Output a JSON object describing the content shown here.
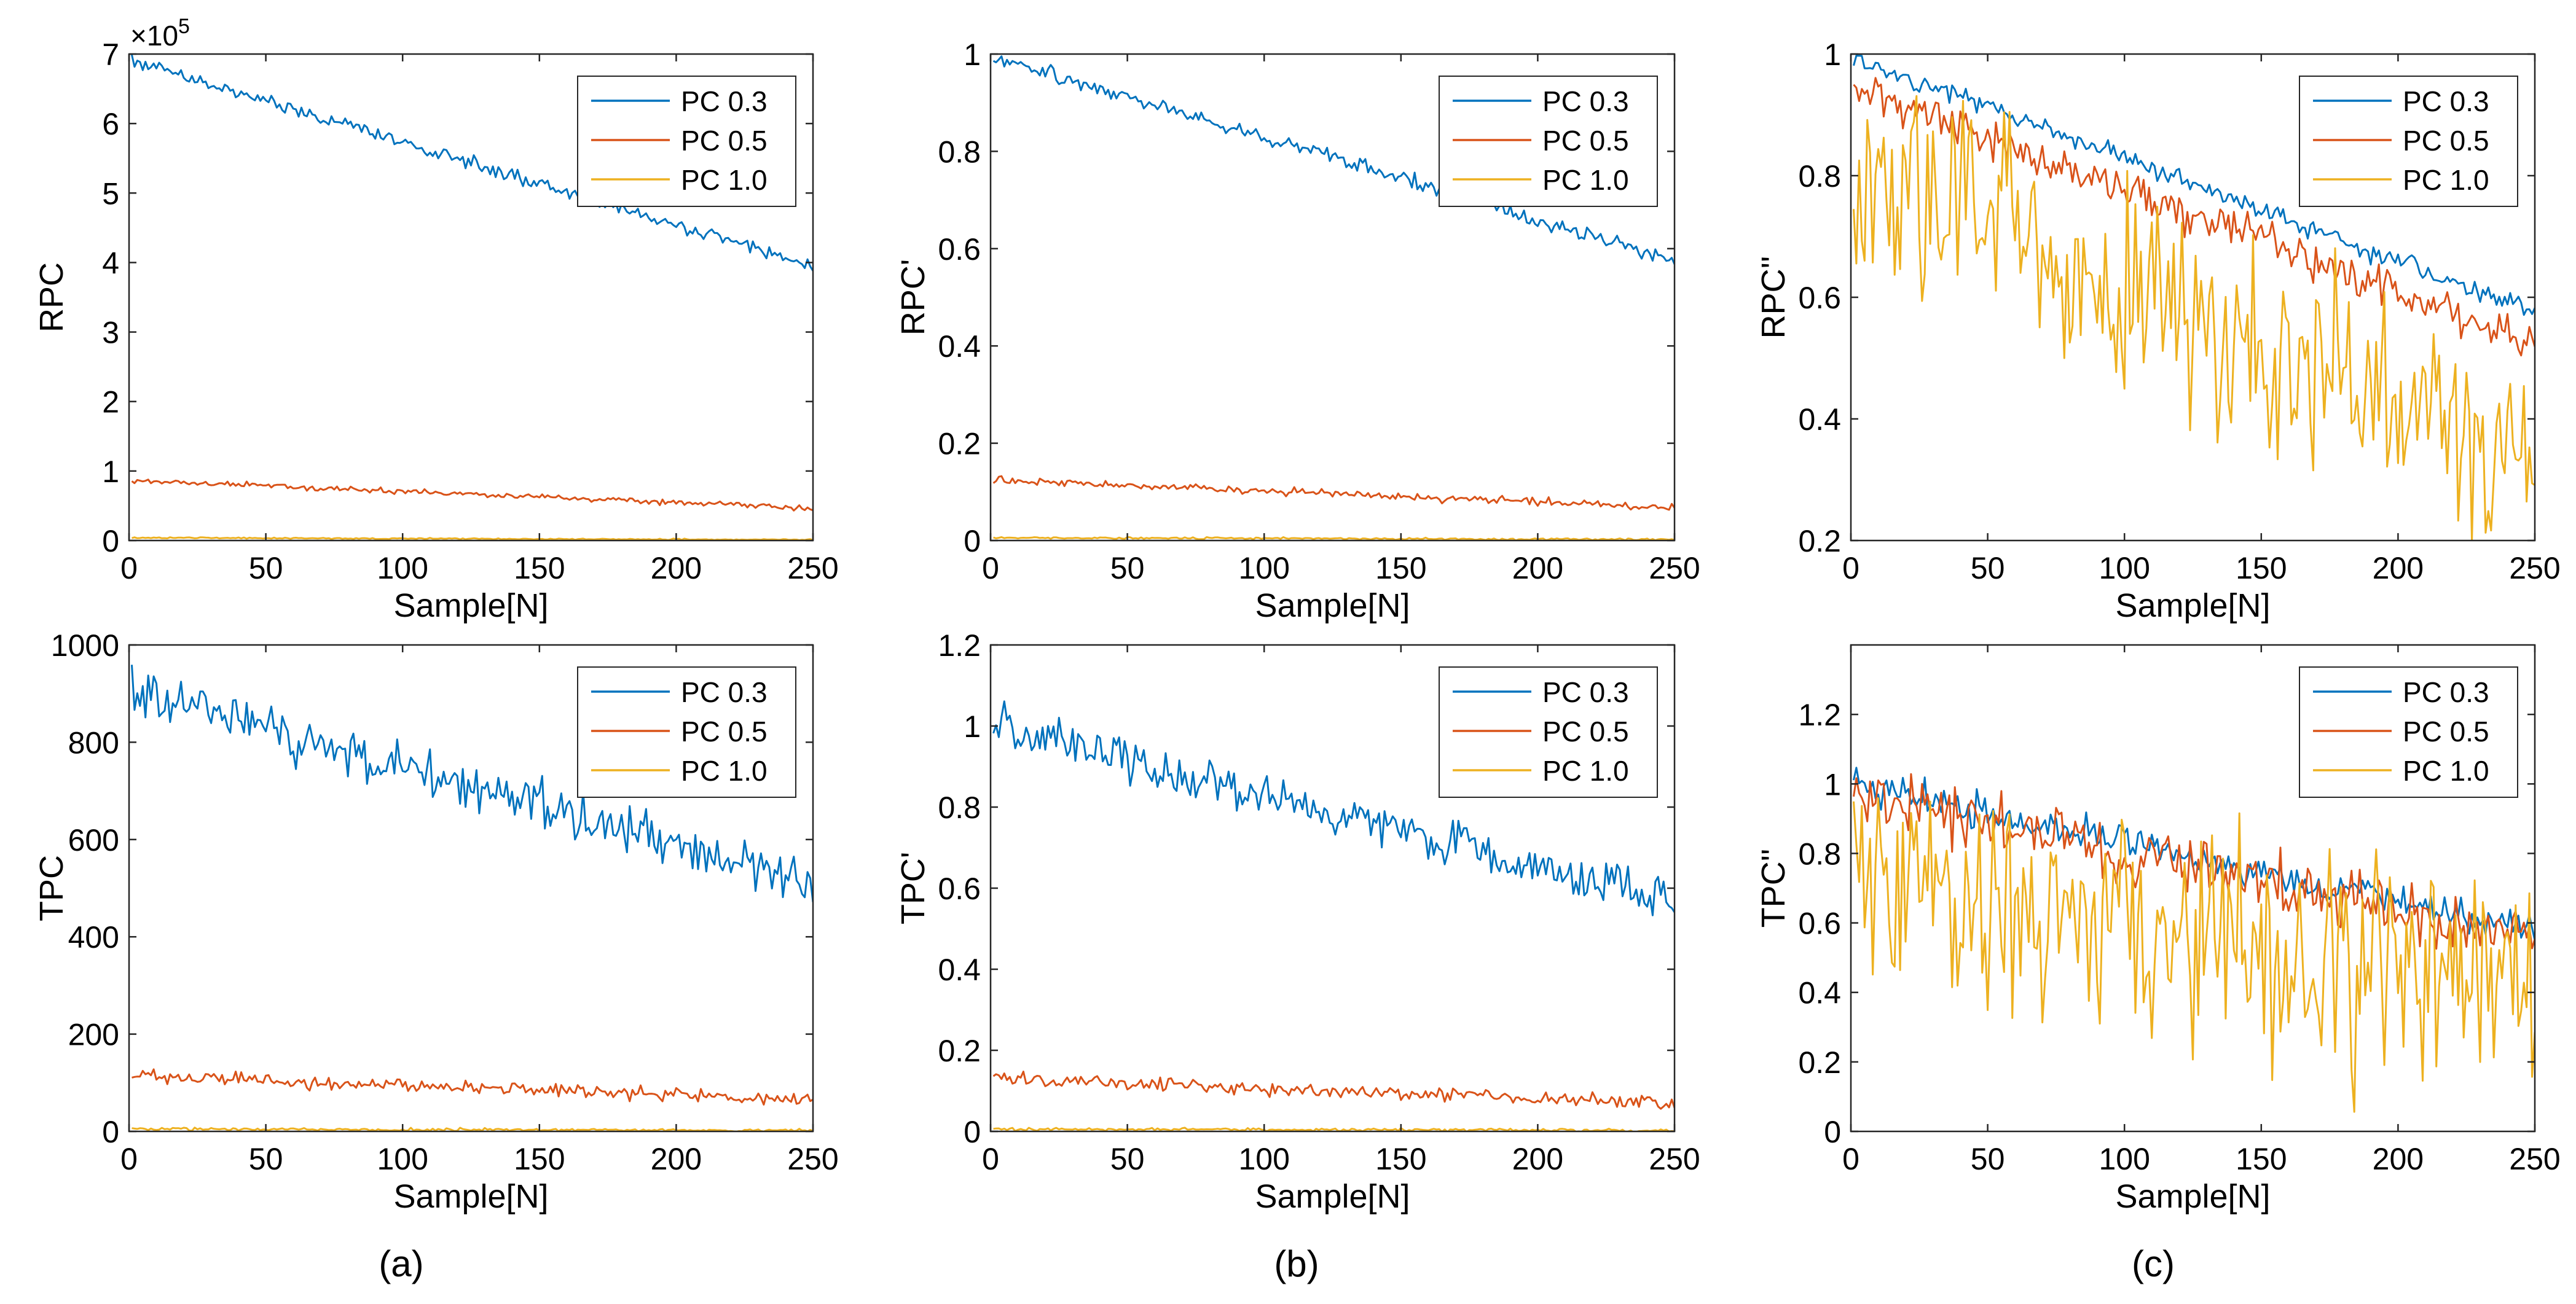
{
  "figure": {
    "panel_labels": [
      "(a)",
      "(b)",
      "(c)"
    ]
  },
  "series_styles": [
    {
      "name": "PC 0.3",
      "color": "#0072BD"
    },
    {
      "name": "PC 0.5",
      "color": "#D95319"
    },
    {
      "name": "PC 1.0",
      "color": "#EDB120"
    }
  ],
  "chart_data": [
    {
      "id": "rpc",
      "type": "line",
      "xlabel": "Sample[N]",
      "ylabel": "RPC",
      "xlim": [
        0,
        250
      ],
      "ylim": [
        0,
        7
      ],
      "xticks": [
        0,
        50,
        100,
        150,
        200,
        250
      ],
      "yticks": [
        0,
        1,
        2,
        3,
        4,
        5,
        6,
        7
      ],
      "exponent_label": "×10",
      "exponent_power": "5",
      "series": [
        {
          "name": "PC 0.3",
          "start": 6.9,
          "end": 3.95,
          "noise": 0.05,
          "seed": 11
        },
        {
          "name": "PC 0.5",
          "start": 0.87,
          "end": 0.47,
          "noise": 0.02,
          "seed": 12
        },
        {
          "name": "PC 1.0",
          "start": 0.04,
          "end": 0.01,
          "noise": 0.005,
          "seed": 13
        }
      ],
      "legend": "top-right"
    },
    {
      "id": "rpc-prime",
      "type": "line",
      "xlabel": "Sample[N]",
      "ylabel": "RPC'",
      "xlim": [
        0,
        250
      ],
      "ylim": [
        0,
        1
      ],
      "xticks": [
        0,
        50,
        100,
        150,
        200,
        250
      ],
      "yticks": [
        0,
        0.2,
        0.4,
        0.6,
        0.8,
        1
      ],
      "series": [
        {
          "name": "PC 0.3",
          "start": 0.995,
          "end": 0.575,
          "noise": 0.008,
          "seed": 21
        },
        {
          "name": "PC 0.5",
          "start": 0.125,
          "end": 0.068,
          "noise": 0.004,
          "seed": 22
        },
        {
          "name": "PC 1.0",
          "start": 0.006,
          "end": 0.002,
          "noise": 0.001,
          "seed": 23
        }
      ],
      "legend": "top-right"
    },
    {
      "id": "rpc-dprime",
      "type": "line",
      "xlabel": "Sample[N]",
      "ylabel": "RPC''",
      "xlim": [
        0,
        250
      ],
      "ylim": [
        0.2,
        1
      ],
      "xticks": [
        0,
        50,
        100,
        150,
        200,
        250
      ],
      "yticks": [
        0.2,
        0.4,
        0.6,
        0.8,
        1
      ],
      "series": [
        {
          "name": "PC 0.3",
          "start": 0.995,
          "end": 0.575,
          "noise": 0.008,
          "seed": 31
        },
        {
          "name": "PC 0.5",
          "start": 0.95,
          "end": 0.52,
          "noise": 0.018,
          "seed": 32
        },
        {
          "name": "PC 1.0",
          "start": 0.8,
          "end": 0.33,
          "noise": 0.09,
          "seed": 33
        }
      ],
      "legend": "top-right"
    },
    {
      "id": "tpc",
      "type": "line",
      "xlabel": "Sample[N]",
      "ylabel": "TPC",
      "xlim": [
        0,
        250
      ],
      "ylim": [
        0,
        1000
      ],
      "xticks": [
        0,
        50,
        100,
        150,
        200,
        250
      ],
      "yticks": [
        0,
        200,
        400,
        600,
        800,
        1000
      ],
      "series": [
        {
          "name": "PC 0.3",
          "start": 910,
          "end": 510,
          "noise": 25,
          "seed": 41
        },
        {
          "name": "PC 0.5",
          "start": 115,
          "end": 65,
          "noise": 7,
          "seed": 42
        },
        {
          "name": "PC 1.0",
          "start": 5,
          "end": 2,
          "noise": 1.5,
          "seed": 43
        }
      ],
      "legend": "top-right"
    },
    {
      "id": "tpc-prime",
      "type": "line",
      "xlabel": "Sample[N]",
      "ylabel": "TPC'",
      "xlim": [
        0,
        250
      ],
      "ylim": [
        0,
        1.2
      ],
      "xticks": [
        0,
        50,
        100,
        150,
        200,
        250
      ],
      "yticks": [
        0,
        0.2,
        0.4,
        0.6,
        0.8,
        1,
        1.2
      ],
      "series": [
        {
          "name": "PC 0.3",
          "start": 1.0,
          "end": 0.57,
          "noise": 0.028,
          "seed": 51
        },
        {
          "name": "PC 0.5",
          "start": 0.13,
          "end": 0.072,
          "noise": 0.008,
          "seed": 52
        },
        {
          "name": "PC 1.0",
          "start": 0.006,
          "end": 0.002,
          "noise": 0.002,
          "seed": 53
        }
      ],
      "legend": "top-right"
    },
    {
      "id": "tpc-dprime",
      "type": "line",
      "xlabel": "Sample[N]",
      "ylabel": "TPC''",
      "xlim": [
        0,
        250
      ],
      "ylim": [
        0,
        1.4
      ],
      "xticks": [
        0,
        50,
        100,
        150,
        200,
        250
      ],
      "yticks": [
        0,
        0.2,
        0.4,
        0.6,
        0.8,
        1,
        1.2
      ],
      "series": [
        {
          "name": "PC 0.3",
          "start": 1.0,
          "end": 0.58,
          "noise": 0.025,
          "seed": 61
        },
        {
          "name": "PC 0.5",
          "start": 0.97,
          "end": 0.55,
          "noise": 0.04,
          "seed": 62
        },
        {
          "name": "PC 1.0",
          "start": 0.75,
          "end": 0.38,
          "noise": 0.16,
          "seed": 63
        }
      ],
      "legend": "top-right"
    }
  ]
}
